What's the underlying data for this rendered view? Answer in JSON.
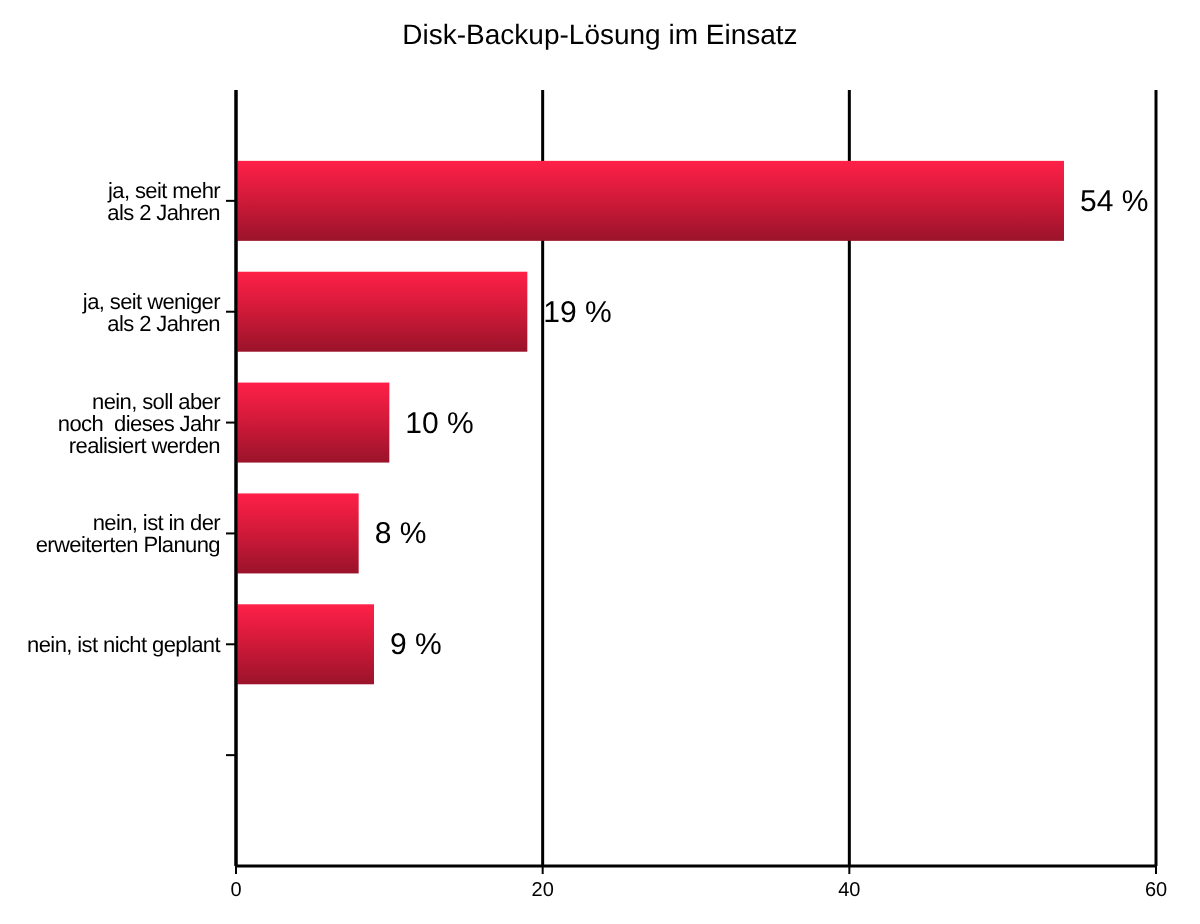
{
  "chart_data": {
    "type": "bar",
    "orientation": "horizontal",
    "title": "Disk-Backup-Lösung im Einsatz",
    "categories": [
      "ja, seit mehr\nals 2 Jahren",
      "ja, seit weniger\nals 2 Jahren",
      "nein, soll aber\nnoch  dieses Jahr\nrealisiert werden",
      "nein, ist in der\nerweiterten Planung",
      "nein, ist nicht geplant",
      null
    ],
    "values": [
      54,
      19,
      10,
      8,
      9,
      null
    ],
    "value_labels": [
      "54 %",
      "19 %",
      "10 %",
      "8 %",
      "9 %",
      null
    ],
    "color": "#d41a3a",
    "xlim": [
      0,
      60
    ],
    "xticks": [
      0,
      20,
      40,
      60
    ],
    "grid": "x"
  }
}
